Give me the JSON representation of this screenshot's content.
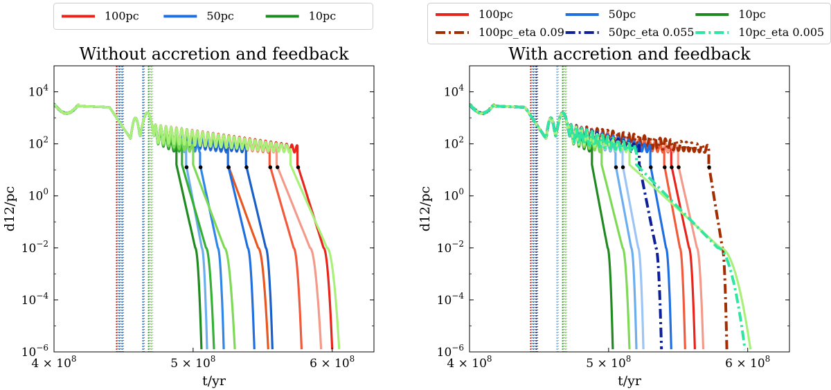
{
  "chart_data": [
    {
      "type": "line",
      "title": "Without accretion and feedback",
      "xlabel": "t/yr",
      "ylabel": "d12/pc",
      "xlim": [
        400000000.0,
        630000000.0
      ],
      "ylog_lim": [
        -6,
        5
      ],
      "xticks": [
        {
          "value": 400000000.0,
          "label": "4 × 10",
          "exp": "8"
        },
        {
          "value": 500000000.0,
          "label": "5 × 10",
          "exp": "8"
        },
        {
          "value": 600000000.0,
          "label": "6 × 10",
          "exp": "8"
        }
      ],
      "yticks": [
        {
          "value": -6,
          "label": "10",
          "exp": "−6"
        },
        {
          "value": -4,
          "label": "10",
          "exp": "−4"
        },
        {
          "value": -2,
          "label": "10",
          "exp": "−2"
        },
        {
          "value": 0,
          "label": "10",
          "exp": "0"
        },
        {
          "value": 2,
          "label": "10",
          "exp": "2"
        },
        {
          "value": 4,
          "label": "10",
          "exp": "4"
        }
      ],
      "legend": [
        {
          "name": "100pc",
          "color": "#e8251c",
          "style": "solid"
        },
        {
          "name": "50pc",
          "color": "#1f6fe0",
          "style": "solid"
        },
        {
          "name": "10pc",
          "color": "#1f8a1f",
          "style": "solid"
        }
      ],
      "vlines": [
        {
          "x": 445000000.0,
          "color": "#e8251c"
        },
        {
          "x": 447000000.0,
          "color": "#1f6fe0"
        },
        {
          "x": 449000000.0,
          "color": "#1f6fe0"
        },
        {
          "x": 464000000.0,
          "color": "#1f6fe0"
        },
        {
          "x": 468000000.0,
          "color": "#35b035"
        },
        {
          "x": 470000000.0,
          "color": "#7ed957"
        }
      ],
      "series": [
        {
          "name": "100pc",
          "color": "#e8251c",
          "t_spiral": 575000000.0,
          "t_merge": 600000000.0,
          "markers": true
        },
        {
          "name": "100pc",
          "color": "#f25a3c",
          "t_spiral": 555000000.0,
          "t_merge": 578000000.0,
          "markers": true
        },
        {
          "name": "100pc",
          "color": "#f39a8a",
          "t_spiral": 560000000.0,
          "t_merge": 592000000.0,
          "markers": true
        },
        {
          "name": "100pc",
          "color": "#e8571f",
          "t_spiral": 525000000.0,
          "t_merge": 554000000.0,
          "markers": true
        },
        {
          "name": "50pc",
          "color": "#1f6fe0",
          "t_spiral": 525000000.0,
          "t_merge": 544000000.0,
          "markers": true
        },
        {
          "name": "50pc",
          "color": "#2f86e8",
          "t_spiral": 505000000.0,
          "t_merge": 522000000.0,
          "markers": true
        },
        {
          "name": "50pc",
          "color": "#6aaef0",
          "t_spiral": 495000000.0,
          "t_merge": 510000000.0,
          "markers": true
        },
        {
          "name": "50pc",
          "color": "#1a5fc8",
          "t_spiral": 538000000.0,
          "t_merge": 557000000.0,
          "markers": true
        },
        {
          "name": "10pc",
          "color": "#1f8a1f",
          "t_spiral": 488000000.0,
          "t_merge": 506000000.0,
          "markers": false
        },
        {
          "name": "10pc",
          "color": "#35b035",
          "t_spiral": 492000000.0,
          "t_merge": 515000000.0,
          "markers": false
        },
        {
          "name": "10pc",
          "color": "#7ed957",
          "t_spiral": 500000000.0,
          "t_merge": 530000000.0,
          "markers": false
        },
        {
          "name": "10pc",
          "color": "#a8f07a",
          "t_spiral": 570000000.0,
          "t_merge": 605000000.0,
          "markers": false
        }
      ]
    },
    {
      "type": "line",
      "title": "With accretion and feedback",
      "xlabel": "t/yr",
      "ylabel": "d12/pc",
      "xlim": [
        400000000.0,
        630000000.0
      ],
      "ylog_lim": [
        -6,
        5
      ],
      "xticks": [
        {
          "value": 400000000.0,
          "label": "4 × 10",
          "exp": "8"
        },
        {
          "value": 500000000.0,
          "label": "5 × 10",
          "exp": "8"
        },
        {
          "value": 600000000.0,
          "label": "6 × 10",
          "exp": "8"
        }
      ],
      "yticks": [
        {
          "value": -6,
          "label": "10",
          "exp": "−6"
        },
        {
          "value": -4,
          "label": "10",
          "exp": "−4"
        },
        {
          "value": -2,
          "label": "10",
          "exp": "−2"
        },
        {
          "value": 0,
          "label": "10",
          "exp": "0"
        },
        {
          "value": 2,
          "label": "10",
          "exp": "2"
        },
        {
          "value": 4,
          "label": "10",
          "exp": "4"
        }
      ],
      "legend": [
        {
          "name": "100pc",
          "color": "#e8251c",
          "style": "solid"
        },
        {
          "name": "50pc",
          "color": "#1f6fe0",
          "style": "solid"
        },
        {
          "name": "10pc",
          "color": "#1f8a1f",
          "style": "solid"
        },
        {
          "name": "100pc_eta 0.09",
          "color": "#a32d00",
          "style": "dashdot"
        },
        {
          "name": "50pc_eta 0.055",
          "color": "#0d1f99",
          "style": "dashdot"
        },
        {
          "name": "10pc_eta 0.005",
          "color": "#2ee6a0",
          "style": "dashdot"
        }
      ],
      "vlines": [
        {
          "x": 444000000.0,
          "color": "#e8251c"
        },
        {
          "x": 446000000.0,
          "color": "#1f6fe0"
        },
        {
          "x": 448000000.0,
          "color": "#0d1f99"
        },
        {
          "x": 463000000.0,
          "color": "#6aaef0"
        },
        {
          "x": 467000000.0,
          "color": "#35b035"
        },
        {
          "x": 469000000.0,
          "color": "#7ed957"
        }
      ],
      "series": [
        {
          "name": "100pc",
          "color": "#e8251c",
          "t_spiral": 545000000.0,
          "t_merge": 562000000.0,
          "markers": true
        },
        {
          "name": "100pc",
          "color": "#f39a8a",
          "t_spiral": 550000000.0,
          "t_merge": 568000000.0,
          "markers": true
        },
        {
          "name": "100pc",
          "color": "#f25a3c",
          "t_spiral": 540000000.0,
          "t_merge": 555000000.0,
          "markers": true
        },
        {
          "name": "100pc_eta 0.09",
          "color": "#a32d00",
          "t_spiral": 572000000.0,
          "t_merge": 585000000.0,
          "markers": true,
          "dash": true
        },
        {
          "name": "50pc",
          "color": "#1f6fe0",
          "t_spiral": 530000000.0,
          "t_merge": 545000000.0,
          "markers": true
        },
        {
          "name": "50pc",
          "color": "#6aaef0",
          "t_spiral": 505000000.0,
          "t_merge": 520000000.0,
          "markers": true
        },
        {
          "name": "50pc",
          "color": "#9cc4f5",
          "t_spiral": 510000000.0,
          "t_merge": 525000000.0,
          "markers": true
        },
        {
          "name": "50pc_eta 0.055",
          "color": "#0d1f99",
          "t_spiral": 522000000.0,
          "t_merge": 538000000.0,
          "markers": true,
          "dash": true
        },
        {
          "name": "10pc",
          "color": "#1f8a1f",
          "t_spiral": 488000000.0,
          "t_merge": 503000000.0,
          "markers": false
        },
        {
          "name": "10pc",
          "color": "#7ed957",
          "t_spiral": 495000000.0,
          "t_merge": 515000000.0,
          "markers": false
        },
        {
          "name": "10pc",
          "color": "#a8f07a",
          "t_spiral": 515000000.0,
          "t_merge": 602000000.0,
          "markers": false
        },
        {
          "name": "10pc_eta 0.005",
          "color": "#2ee6a0",
          "t_spiral": 520000000.0,
          "t_merge": 598000000.0,
          "markers": false,
          "dash": true
        }
      ]
    }
  ]
}
